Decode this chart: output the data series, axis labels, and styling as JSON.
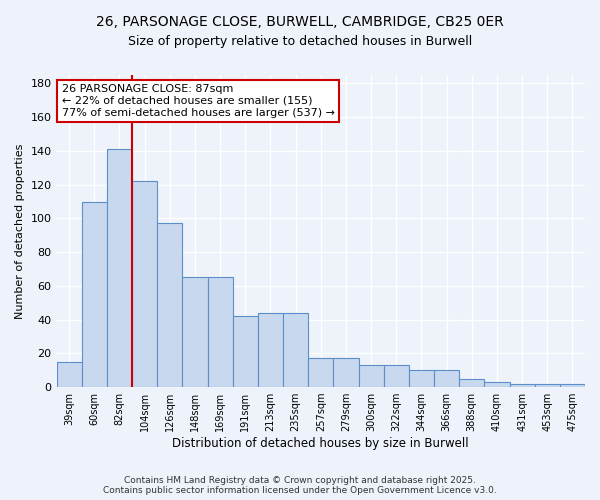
{
  "title1": "26, PARSONAGE CLOSE, BURWELL, CAMBRIDGE, CB25 0ER",
  "title2": "Size of property relative to detached houses in Burwell",
  "xlabel": "Distribution of detached houses by size in Burwell",
  "ylabel": "Number of detached properties",
  "categories": [
    "39sqm",
    "60sqm",
    "82sqm",
    "104sqm",
    "126sqm",
    "148sqm",
    "169sqm",
    "191sqm",
    "213sqm",
    "235sqm",
    "257sqm",
    "279sqm",
    "300sqm",
    "322sqm",
    "344sqm",
    "366sqm",
    "388sqm",
    "410sqm",
    "431sqm",
    "453sqm",
    "475sqm"
  ],
  "values": [
    15,
    110,
    141,
    122,
    97,
    65,
    65,
    42,
    44,
    44,
    17,
    17,
    13,
    13,
    10,
    10,
    5,
    3,
    2,
    2,
    2
  ],
  "bar_color": "#c8d9ef",
  "bar_edge_color": "#5b8fc9",
  "red_line_index": 2,
  "annotation_text": "26 PARSONAGE CLOSE: 87sqm\n← 22% of detached houses are smaller (155)\n77% of semi-detached houses are larger (537) →",
  "annotation_box_color": "#ffffff",
  "annotation_box_edge": "#cc0000",
  "red_line_color": "#cc0000",
  "background_color": "#eef2fa",
  "grid_color": "#ffffff",
  "ylim": [
    0,
    185
  ],
  "yticks": [
    0,
    20,
    40,
    60,
    80,
    100,
    120,
    140,
    160,
    180
  ],
  "footer1": "Contains HM Land Registry data © Crown copyright and database right 2025.",
  "footer2": "Contains public sector information licensed under the Open Government Licence v3.0."
}
